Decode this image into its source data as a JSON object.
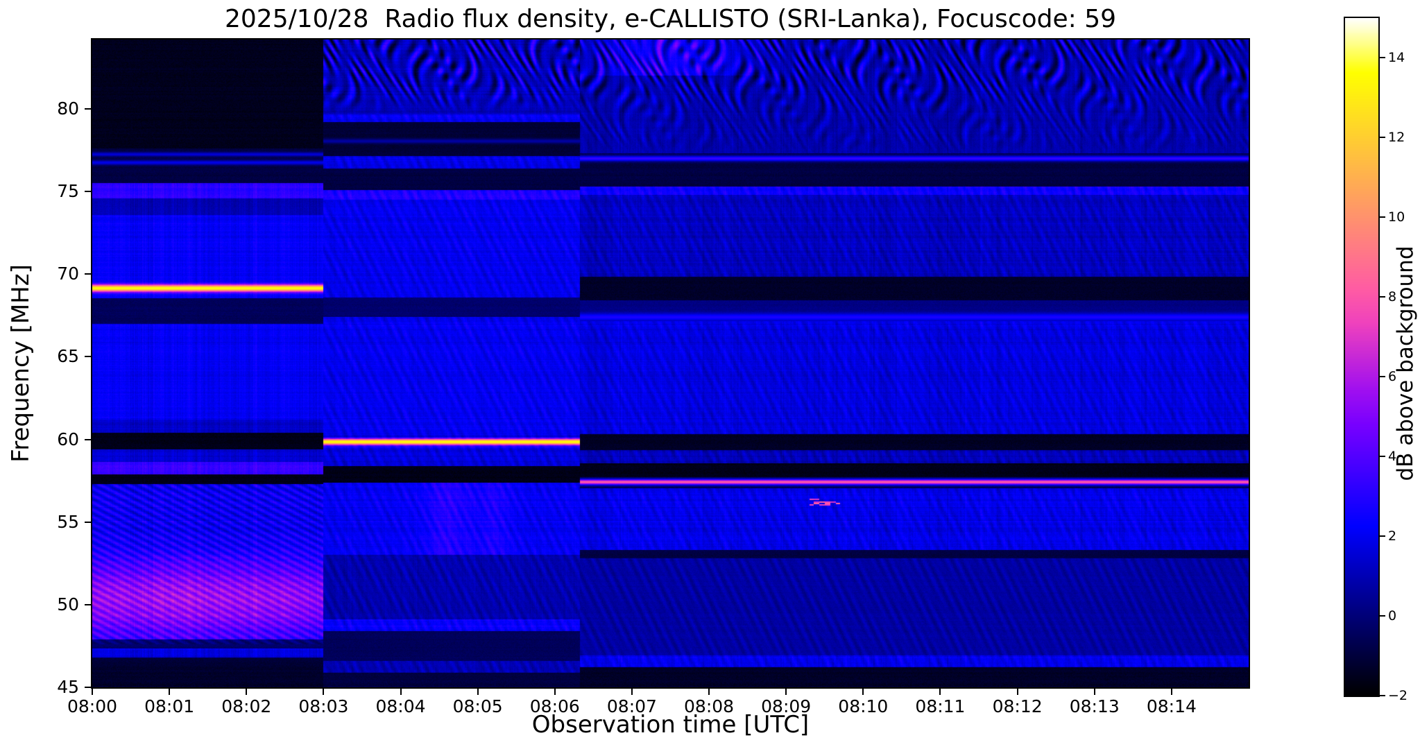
{
  "colors": {
    "background": "#ffffff",
    "text": "#000000",
    "frame": "#000000"
  },
  "chart_data": {
    "type": "heatmap",
    "title": "2025/10/28  Radio flux density, e-CALLISTO (SRI-Lanka), Focuscode: 59",
    "xlabel": "Observation time [UTC]",
    "ylabel": "Frequency [MHz]",
    "colorbar_label": "dB above background",
    "grid": false,
    "x_tick_labels": [
      "08:00",
      "08:01",
      "08:02",
      "08:03",
      "08:04",
      "08:05",
      "08:06",
      "08:07",
      "08:08",
      "08:09",
      "08:10",
      "08:11",
      "08:12",
      "08:13",
      "08:14"
    ],
    "x_range_minutes": [
      0,
      15
    ],
    "x_start_time": "08:00",
    "y_tick_values": [
      45,
      50,
      55,
      60,
      65,
      70,
      75,
      80
    ],
    "freq_range_mhz": [
      45,
      84.2
    ],
    "value_range_db": [
      -2,
      15
    ],
    "colorbar_tick_values": [
      -2,
      0,
      2,
      4,
      6,
      8,
      10,
      12,
      14
    ],
    "colorbar_tick_labels": [
      "−2",
      "0",
      "2",
      "4",
      "6",
      "8",
      "10",
      "12",
      "14"
    ],
    "colormap": {
      "name": "gnuplot2-like (black-blue-violet-pink-orange-yellow-white)",
      "stops": [
        [
          0.0,
          "#000000"
        ],
        [
          0.05,
          "#000033"
        ],
        [
          0.1,
          "#000066"
        ],
        [
          0.15,
          "#000099"
        ],
        [
          0.2,
          "#0000cc"
        ],
        [
          0.25,
          "#0000ff"
        ],
        [
          0.3,
          "#2800ff"
        ],
        [
          0.35,
          "#5000ff"
        ],
        [
          0.4,
          "#7800ff"
        ],
        [
          0.45,
          "#9f0ff0"
        ],
        [
          0.5,
          "#c729d6"
        ],
        [
          0.55,
          "#ef42bd"
        ],
        [
          0.6,
          "#ff5ca3"
        ],
        [
          0.65,
          "#ff758a"
        ],
        [
          0.7,
          "#ff8f70"
        ],
        [
          0.75,
          "#ffa857"
        ],
        [
          0.8,
          "#ffc23d"
        ],
        [
          0.85,
          "#ffdb24"
        ],
        [
          0.9,
          "#fff50a"
        ],
        [
          0.92,
          "#ffff00"
        ],
        [
          0.96,
          "#ffff80"
        ],
        [
          1.0,
          "#ffffff"
        ]
      ]
    },
    "notable_features": [
      "Strong narrowband carrier at ~69.2 MHz from 08:00 to 08:03 (~14 dB, yellow)",
      "Strong narrowband carrier at ~59.9 MHz from 08:03 to ~08:06:20 (~14 dB, yellow)",
      "Narrowband carrier at ~57.4 MHz from ~08:06:20 to 08:15 (~8 dB, pink)",
      "Striped purple-pink enhancement between ~48 and 53 MHz from 08:00 to 08:03 (up to ~6 dB)",
      "Wavy interference pattern above ~80 MHz (08:03-08:06) and above ~77 MHz (after 08:06)",
      "Short weak burst near 56.2 MHz around 08:09:30",
      "Quiet dark bands near 57.5-58.5, 59.4-60.4 and 68.4-69.8 MHz",
      "Three concatenated recording segments with boundaries at 08:03 and ~08:06:20"
    ],
    "segments": [
      {
        "label": "segment 1",
        "time_span": "08:00-08:03",
        "t_start_min": 0,
        "t_end_min": 3,
        "bands": [
          [
            45.0,
            46.8,
            -1.3
          ],
          [
            46.8,
            47.35,
            1.3
          ],
          [
            47.35,
            47.9,
            -0.9
          ],
          [
            47.9,
            53.0,
            2.0
          ],
          [
            53.0,
            57.3,
            2.2
          ],
          [
            57.3,
            57.9,
            -1.6
          ],
          [
            57.9,
            58.65,
            3.4
          ],
          [
            58.65,
            59.4,
            1.5
          ],
          [
            59.4,
            60.4,
            -1.6
          ],
          [
            60.4,
            61.2,
            1.3
          ],
          [
            61.2,
            67.0,
            2.1
          ],
          [
            67.0,
            68.55,
            -0.5
          ],
          [
            68.55,
            73.6,
            2.2
          ],
          [
            73.6,
            74.6,
            1.0
          ],
          [
            74.6,
            75.5,
            3.2
          ],
          [
            75.5,
            77.6,
            -0.9
          ],
          [
            77.6,
            84.2,
            -1.5
          ]
        ],
        "lines": [
          {
            "f": 69.15,
            "level": 13.7,
            "w": 0.15
          },
          {
            "f": 76.75,
            "level": 1.9,
            "w": 0.1
          },
          {
            "f": 77.25,
            "level": 1.6,
            "w": 0.09
          }
        ],
        "patch": {
          "f_center": 50.3,
          "f_sigma": 1.6,
          "amp_db": 3.2
        },
        "smudges": [
          {
            "t_center": 1.3,
            "t_sigma": 0.9,
            "f_range": [
              47.9,
              53.0
            ],
            "amp": 0.6
          }
        ],
        "texture": {
          "diag_stripes": true,
          "diag_range": [
            47.6,
            57.3
          ],
          "vert_stripes": 0.55,
          "wave_top": 0,
          "midwave": 0
        }
      },
      {
        "label": "segment 2",
        "time_span": "08:03-08:06:20",
        "t_start_min": 3,
        "t_end_min": 6.33,
        "bands": [
          [
            45.0,
            45.9,
            -0.9
          ],
          [
            45.9,
            46.6,
            1.0
          ],
          [
            46.6,
            48.4,
            -0.5
          ],
          [
            48.4,
            49.1,
            2.3
          ],
          [
            49.1,
            53.0,
            0.9
          ],
          [
            53.0,
            57.4,
            2.1
          ],
          [
            57.4,
            58.4,
            -1.6
          ],
          [
            58.4,
            59.55,
            1.7
          ],
          [
            59.55,
            60.25,
            0.8
          ],
          [
            60.25,
            67.4,
            2.0
          ],
          [
            67.4,
            68.6,
            -0.2
          ],
          [
            68.6,
            74.5,
            2.0
          ],
          [
            74.5,
            75.1,
            2.9
          ],
          [
            75.1,
            76.4,
            -0.9
          ],
          [
            76.4,
            77.15,
            1.9
          ],
          [
            77.15,
            79.2,
            -1.1
          ],
          [
            79.2,
            79.65,
            2.2
          ],
          [
            79.65,
            84.2,
            1.1
          ]
        ],
        "lines": [
          {
            "f": 59.85,
            "level": 13.6,
            "w": 0.14
          },
          {
            "f": 78.05,
            "level": 0.7,
            "w": 0.1
          }
        ],
        "smudges": [
          {
            "t_center": 4.6,
            "t_sigma": 0.22,
            "f_range": [
              53.0,
              57.4
            ],
            "amp": 0.9
          },
          {
            "t_center": 5.2,
            "t_sigma": 0.15,
            "f_range": [
              53.0,
              57.4
            ],
            "amp": 0.7
          }
        ],
        "texture": {
          "diag_stripes": false,
          "vert_stripes": 0.35,
          "wave_top": 2.6,
          "wave_top_fmin": 79.65,
          "midwave": 0.5
        }
      },
      {
        "label": "segment 3",
        "time_span": "08:06:20-08:15",
        "t_start_min": 6.33,
        "t_end_min": 15,
        "bands": [
          [
            45.0,
            46.2,
            -1.3
          ],
          [
            46.2,
            46.95,
            1.9
          ],
          [
            46.95,
            52.8,
            0.7
          ],
          [
            52.8,
            53.3,
            -0.9
          ],
          [
            53.3,
            57.05,
            1.9
          ],
          [
            57.05,
            57.7,
            -0.8
          ],
          [
            57.7,
            58.55,
            -1.6
          ],
          [
            58.55,
            59.35,
            1.1
          ],
          [
            59.35,
            60.3,
            -1.4
          ],
          [
            60.3,
            67.15,
            1.7
          ],
          [
            67.15,
            68.4,
            0.2
          ],
          [
            68.4,
            69.85,
            -1.3
          ],
          [
            69.85,
            74.8,
            1.2
          ],
          [
            74.8,
            75.3,
            2.6
          ],
          [
            75.3,
            77.3,
            -0.9
          ],
          [
            77.3,
            84.2,
            0.9
          ]
        ],
        "lines": [
          {
            "f": 57.42,
            "level": 8.2,
            "w": 0.12
          },
          {
            "f": 77.0,
            "level": 3.4,
            "w": 0.12
          },
          {
            "f": 67.4,
            "level": 2.8,
            "w": 0.16
          }
        ],
        "burst": {
          "t_range_min": [
            9.3,
            9.7
          ],
          "f_range": [
            56.0,
            56.4
          ],
          "peak_db": 8.5
        },
        "smudges": [
          {
            "t_center": 7.5,
            "t_sigma": 0.7,
            "f_range": [
              82.0,
              84.2
            ],
            "amp": 1.6
          }
        ],
        "texture": {
          "diag_stripes": false,
          "vert_stripes": 0.5,
          "wave_top": 2.4,
          "wave_top_fmin": 77.3,
          "midwave": 0.45
        }
      }
    ]
  }
}
